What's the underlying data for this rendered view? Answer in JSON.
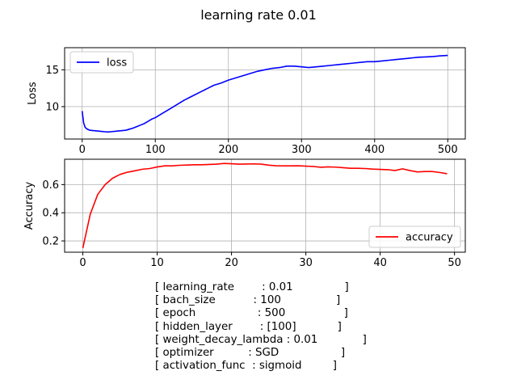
{
  "figure": {
    "title": "learning rate 0.01"
  },
  "chart_data": [
    {
      "type": "line",
      "ylabel": "Loss",
      "xlabel": "",
      "xlim": [
        -24,
        524
      ],
      "ylim": [
        5.6,
        18.0
      ],
      "x_ticks": [
        0,
        100,
        200,
        300,
        400,
        500
      ],
      "y_ticks": [
        10,
        15
      ],
      "grid": true,
      "legend_position": "top-left",
      "series": [
        {
          "name": "loss",
          "color": "#0000ff",
          "points": [
            [
              0,
              9.4
            ],
            [
              2,
              7.8
            ],
            [
              4,
              7.2
            ],
            [
              6,
              7.0
            ],
            [
              8,
              6.9
            ],
            [
              10,
              6.8
            ],
            [
              15,
              6.75
            ],
            [
              20,
              6.7
            ],
            [
              25,
              6.65
            ],
            [
              30,
              6.6
            ],
            [
              35,
              6.55
            ],
            [
              40,
              6.6
            ],
            [
              45,
              6.65
            ],
            [
              50,
              6.7
            ],
            [
              55,
              6.75
            ],
            [
              60,
              6.8
            ],
            [
              65,
              6.95
            ],
            [
              70,
              7.1
            ],
            [
              75,
              7.3
            ],
            [
              80,
              7.5
            ],
            [
              85,
              7.7
            ],
            [
              90,
              8.0
            ],
            [
              95,
              8.3
            ],
            [
              100,
              8.5
            ],
            [
              110,
              9.1
            ],
            [
              120,
              9.7
            ],
            [
              130,
              10.3
            ],
            [
              140,
              10.9
            ],
            [
              150,
              11.4
            ],
            [
              160,
              11.9
            ],
            [
              170,
              12.4
            ],
            [
              180,
              12.9
            ],
            [
              190,
              13.2
            ],
            [
              200,
              13.6
            ],
            [
              210,
              13.9
            ],
            [
              220,
              14.2
            ],
            [
              230,
              14.5
            ],
            [
              240,
              14.8
            ],
            [
              250,
              15.0
            ],
            [
              260,
              15.2
            ],
            [
              270,
              15.3
            ],
            [
              280,
              15.5
            ],
            [
              290,
              15.5
            ],
            [
              300,
              15.4
            ],
            [
              310,
              15.3
            ],
            [
              320,
              15.4
            ],
            [
              330,
              15.5
            ],
            [
              340,
              15.6
            ],
            [
              350,
              15.7
            ],
            [
              360,
              15.8
            ],
            [
              370,
              15.9
            ],
            [
              380,
              16.0
            ],
            [
              390,
              16.1
            ],
            [
              400,
              16.1
            ],
            [
              410,
              16.2
            ],
            [
              420,
              16.3
            ],
            [
              430,
              16.4
            ],
            [
              440,
              16.5
            ],
            [
              450,
              16.6
            ],
            [
              460,
              16.7
            ],
            [
              470,
              16.75
            ],
            [
              480,
              16.8
            ],
            [
              490,
              16.9
            ],
            [
              500,
              16.95
            ]
          ]
        }
      ]
    },
    {
      "type": "line",
      "ylabel": "Accuracy",
      "xlabel": "",
      "xlim": [
        -2.45,
        51.45
      ],
      "ylim": [
        0.12,
        0.78
      ],
      "x_ticks": [
        0,
        10,
        20,
        30,
        40,
        50
      ],
      "y_ticks": [
        0.2,
        0.4,
        0.6
      ],
      "grid": true,
      "legend_position": "bottom-right",
      "series": [
        {
          "name": "accuracy",
          "color": "#ff0000",
          "x": [
            0,
            1,
            2,
            3,
            4,
            5,
            6,
            7,
            8,
            9,
            10,
            11,
            12,
            13,
            14,
            15,
            16,
            17,
            18,
            19,
            20,
            21,
            22,
            23,
            24,
            25,
            26,
            27,
            28,
            29,
            30,
            31,
            32,
            33,
            34,
            35,
            36,
            37,
            38,
            39,
            40,
            41,
            42,
            43,
            44,
            45,
            46,
            47,
            48,
            49
          ],
          "y": [
            0.15,
            0.39,
            0.53,
            0.6,
            0.645,
            0.672,
            0.688,
            0.698,
            0.709,
            0.714,
            0.725,
            0.733,
            0.733,
            0.737,
            0.739,
            0.741,
            0.741,
            0.743,
            0.745,
            0.75,
            0.748,
            0.745,
            0.746,
            0.747,
            0.745,
            0.738,
            0.734,
            0.733,
            0.733,
            0.734,
            0.731,
            0.729,
            0.723,
            0.726,
            0.724,
            0.72,
            0.716,
            0.716,
            0.714,
            0.71,
            0.708,
            0.706,
            0.7,
            0.712,
            0.7,
            0.69,
            0.693,
            0.693,
            0.686,
            0.677
          ]
        }
      ]
    }
  ],
  "hyperparameters": [
    {
      "key": "learning_rate",
      "value": "0.01"
    },
    {
      "key": "bach_size",
      "value": "100"
    },
    {
      "key": "epoch",
      "value": "500"
    },
    {
      "key": "hidden_layer",
      "value": "[100]"
    },
    {
      "key": "weight_decay_lambda",
      "value": "0.01"
    },
    {
      "key": "optimizer",
      "value": "SGD"
    },
    {
      "key": "activation_func",
      "value": "sigmoid"
    }
  ]
}
